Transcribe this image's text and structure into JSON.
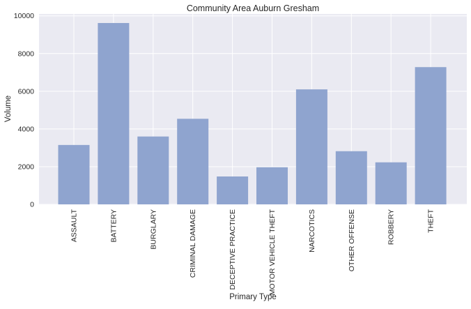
{
  "chart_data": {
    "type": "bar",
    "title": "Community Area Auburn Gresham",
    "xlabel": "Primary Type",
    "ylabel": "Volume",
    "categories": [
      "ASSAULT",
      "BATTERY",
      "BURGLARY",
      "CRIMINAL DAMAGE",
      "DECEPTIVE PRACTICE",
      "MOTOR VEHICLE THEFT",
      "NARCOTICS",
      "OTHER OFFENSE",
      "ROBBERY",
      "THEFT"
    ],
    "values": [
      3150,
      9620,
      3600,
      4540,
      1480,
      1970,
      6100,
      2820,
      2230,
      7280
    ],
    "ylim": [
      0,
      10100
    ],
    "yticks": [
      0,
      2000,
      4000,
      6000,
      8000,
      10000
    ],
    "grid": true,
    "colors": {
      "bar": "#8fa4cf",
      "background": "#eaeaf2",
      "grid": "#ffffff"
    }
  }
}
